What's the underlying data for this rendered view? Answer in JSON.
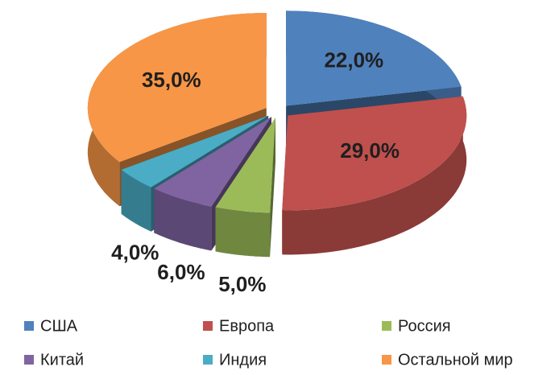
{
  "chart_data": {
    "type": "pie",
    "categories": [
      "США",
      "Европа",
      "Россия",
      "Китай",
      "Индия",
      "Остальной мир"
    ],
    "values": [
      22,
      29,
      5,
      6,
      4,
      35
    ],
    "value_labels": [
      "22,0%",
      "29,0%",
      "5,0%",
      "6,0%",
      "4,0%",
      "35,0%"
    ],
    "colors": [
      "#4f81bd",
      "#c0504d",
      "#9bbb59",
      "#8064a2",
      "#4bacc6",
      "#f79646"
    ],
    "legend": "bottom"
  }
}
